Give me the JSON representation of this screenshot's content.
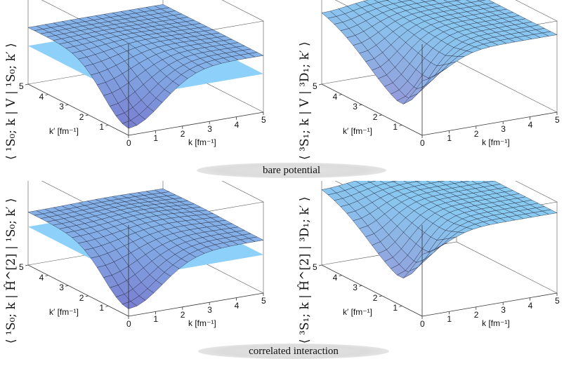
{
  "figure": {
    "captions": {
      "top": "bare potential",
      "bottom": "correlated interaction"
    },
    "panels": [
      {
        "id": "p1",
        "ylabel": "⟨ ¹S₀; k | V | ¹S₀; k′ ⟩",
        "kticks": [
          "0",
          "1",
          "2",
          "3",
          "4",
          "5"
        ],
        "kpticks": [
          "1",
          "2",
          "3",
          "4",
          "5"
        ],
        "klabel": "k [fm⁻¹]",
        "kplabel": "k′ [fm⁻¹]"
      },
      {
        "id": "p2",
        "ylabel": "⟨ ³S₁; k | V | ³D₁; k′ ⟩",
        "kticks": [
          "0",
          "1",
          "2",
          "3",
          "4",
          "5"
        ],
        "kpticks": [
          "1",
          "2",
          "3",
          "4",
          "5"
        ],
        "klabel": "k [fm⁻¹]",
        "kplabel": "k′ [fm⁻¹]"
      },
      {
        "id": "p3",
        "ylabel": "⟨ ¹S₀; k | Ĥ^[2] | ¹S₀; k′ ⟩",
        "kticks": [
          "0",
          "1",
          "2",
          "3",
          "4",
          "5"
        ],
        "kpticks": [
          "1",
          "2",
          "3",
          "4",
          "5"
        ],
        "klabel": "k [fm⁻¹]",
        "kplabel": "k′ [fm⁻¹]"
      },
      {
        "id": "p4",
        "ylabel": "⟨ ³S₁; k | Ĥ^[2] | ³D₁; k′ ⟩",
        "kticks": [
          "0",
          "1",
          "2",
          "3",
          "4",
          "5"
        ],
        "kpticks": [
          "1",
          "2",
          "3",
          "4",
          "5"
        ],
        "klabel": "k [fm⁻¹]",
        "kplabel": "k′ [fm⁻¹]"
      }
    ],
    "colors": {
      "plane": "#87cefa",
      "surface_low": "#8a8fd8",
      "surface_high": "#8fe0ff",
      "mesh": "#1a1a2e"
    }
  }
}
